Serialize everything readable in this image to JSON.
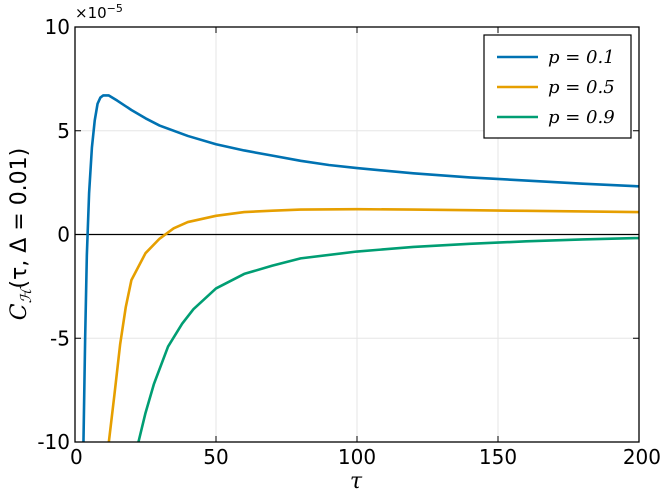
{
  "chart_data": {
    "type": "line",
    "xlabel": "τ",
    "ylabel": "C_H(τ, Δ = 0.01)",
    "ylabel_parts": {
      "base": "C",
      "sub": "ℋ",
      "args": "(τ, Δ = 0.01)"
    },
    "y_multiplier": {
      "base": "×10",
      "exp": "−5"
    },
    "xlim": [
      0,
      200
    ],
    "ylim": [
      -10,
      10
    ],
    "xticks": [
      0,
      50,
      100,
      150,
      200
    ],
    "xtick_labels": [
      "0",
      "50",
      "100",
      "150",
      "200"
    ],
    "yticks": [
      10,
      5,
      0,
      -5,
      -10
    ],
    "ytick_labels": [
      "10",
      "5",
      "0",
      "-5",
      "-10"
    ],
    "grid": true,
    "zero_line": true,
    "legend_position": "top-right",
    "series": [
      {
        "name": "p = 0.1",
        "color": "#0072b2",
        "points": [
          [
            3,
            -10
          ],
          [
            3.6,
            -5
          ],
          [
            4.2,
            -1
          ],
          [
            5,
            2
          ],
          [
            6,
            4.2
          ],
          [
            7,
            5.5
          ],
          [
            8,
            6.3
          ],
          [
            9,
            6.6
          ],
          [
            10,
            6.7
          ],
          [
            12,
            6.7
          ],
          [
            15,
            6.45
          ],
          [
            20,
            6.0
          ],
          [
            25,
            5.6
          ],
          [
            30,
            5.25
          ],
          [
            40,
            4.75
          ],
          [
            50,
            4.35
          ],
          [
            60,
            4.05
          ],
          [
            70,
            3.8
          ],
          [
            80,
            3.55
          ],
          [
            90,
            3.35
          ],
          [
            100,
            3.2
          ],
          [
            120,
            2.95
          ],
          [
            140,
            2.75
          ],
          [
            160,
            2.6
          ],
          [
            180,
            2.45
          ],
          [
            200,
            2.32
          ]
        ]
      },
      {
        "name": "p = 0.5",
        "color": "#e69f00",
        "points": [
          [
            12,
            -10
          ],
          [
            14,
            -7.7
          ],
          [
            16,
            -5.3
          ],
          [
            18,
            -3.5
          ],
          [
            20,
            -2.2
          ],
          [
            25,
            -0.9
          ],
          [
            30,
            -0.2
          ],
          [
            35,
            0.3
          ],
          [
            40,
            0.6
          ],
          [
            50,
            0.9
          ],
          [
            60,
            1.08
          ],
          [
            70,
            1.15
          ],
          [
            80,
            1.2
          ],
          [
            100,
            1.22
          ],
          [
            120,
            1.2
          ],
          [
            140,
            1.17
          ],
          [
            160,
            1.14
          ],
          [
            180,
            1.11
          ],
          [
            200,
            1.08
          ]
        ]
      },
      {
        "name": "p = 0.9",
        "color": "#009e73",
        "points": [
          [
            22.5,
            -10
          ],
          [
            25,
            -8.6
          ],
          [
            28,
            -7.2
          ],
          [
            33,
            -5.4
          ],
          [
            38,
            -4.3
          ],
          [
            42,
            -3.6
          ],
          [
            50,
            -2.6
          ],
          [
            60,
            -1.9
          ],
          [
            70,
            -1.5
          ],
          [
            80,
            -1.15
          ],
          [
            100,
            -0.82
          ],
          [
            120,
            -0.6
          ],
          [
            140,
            -0.45
          ],
          [
            160,
            -0.33
          ],
          [
            180,
            -0.24
          ],
          [
            200,
            -0.17
          ]
        ]
      }
    ]
  }
}
